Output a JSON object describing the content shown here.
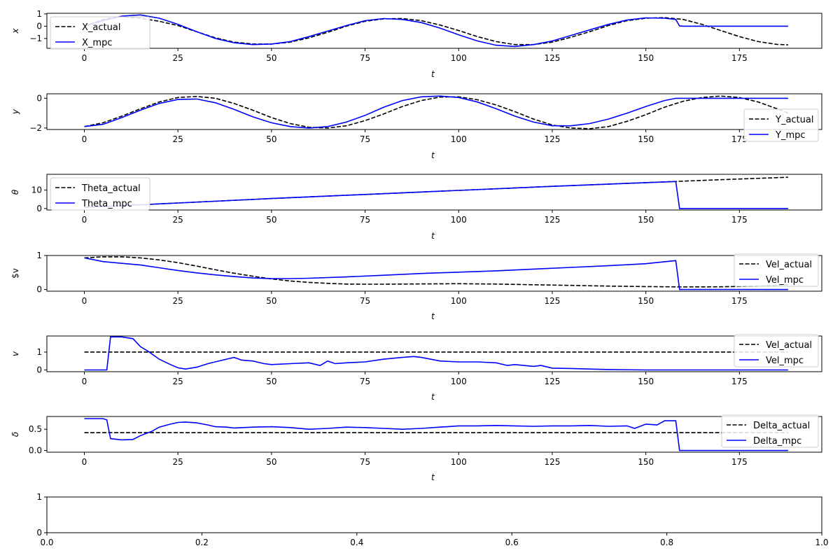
{
  "chart_data": [
    {
      "type": "line",
      "ylabel": "x",
      "xlabel": "t",
      "xlim": [
        -10,
        197
      ],
      "ylim": [
        -1.8,
        1.05
      ],
      "xticks": [
        0,
        25,
        50,
        75,
        100,
        125,
        150,
        175
      ],
      "yticks": [
        -1,
        0,
        1
      ],
      "ytick_labels": [
        "−1",
        "0",
        "1"
      ],
      "legend": "top-left",
      "series": [
        {
          "name": "X_actual",
          "style": "dashed",
          "color": "#000000",
          "x": [
            0,
            5,
            10,
            15,
            20,
            25,
            30,
            35,
            40,
            45,
            50,
            55,
            60,
            65,
            70,
            75,
            80,
            85,
            90,
            95,
            100,
            105,
            110,
            115,
            120,
            125,
            130,
            135,
            140,
            145,
            150,
            155,
            160,
            165,
            170,
            175,
            180,
            185,
            188
          ],
          "y": [
            0.0,
            0.55,
            0.78,
            0.65,
            0.4,
            0.05,
            -0.45,
            -0.95,
            -1.3,
            -1.45,
            -1.45,
            -1.3,
            -0.95,
            -0.5,
            0.0,
            0.4,
            0.6,
            0.62,
            0.45,
            0.1,
            -0.35,
            -0.85,
            -1.25,
            -1.5,
            -1.5,
            -1.3,
            -0.9,
            -0.45,
            0.05,
            0.45,
            0.65,
            0.7,
            0.55,
            0.15,
            -0.35,
            -0.85,
            -1.25,
            -1.48,
            -1.52
          ]
        },
        {
          "name": "X_mpc",
          "style": "solid",
          "color": "#0000ff",
          "x": [
            0,
            5,
            10,
            15,
            20,
            25,
            30,
            35,
            40,
            45,
            50,
            55,
            60,
            65,
            70,
            75,
            80,
            85,
            90,
            95,
            100,
            105,
            110,
            115,
            120,
            125,
            130,
            135,
            140,
            145,
            150,
            155,
            158,
            159,
            160,
            170,
            180,
            188
          ],
          "y": [
            0.0,
            0.45,
            0.82,
            0.92,
            0.65,
            0.15,
            -0.45,
            -1.0,
            -1.35,
            -1.5,
            -1.45,
            -1.25,
            -0.85,
            -0.4,
            0.05,
            0.45,
            0.62,
            0.55,
            0.3,
            -0.15,
            -0.7,
            -1.2,
            -1.55,
            -1.65,
            -1.5,
            -1.2,
            -0.75,
            -0.3,
            0.15,
            0.5,
            0.68,
            0.65,
            0.55,
            0.02,
            0.0,
            0.0,
            0.0,
            0.0
          ]
        }
      ]
    },
    {
      "type": "line",
      "ylabel": "y",
      "xlabel": "t",
      "xlim": [
        -10,
        197
      ],
      "ylim": [
        -2.1,
        0.3
      ],
      "xticks": [
        0,
        25,
        50,
        75,
        100,
        125,
        150,
        175
      ],
      "yticks": [
        -2,
        0
      ],
      "ytick_labels": [
        "−2",
        "0"
      ],
      "legend": "bottom-right",
      "series": [
        {
          "name": "Y_actual",
          "style": "dashed",
          "color": "#000000",
          "x": [
            0,
            5,
            10,
            15,
            20,
            25,
            30,
            35,
            40,
            45,
            50,
            55,
            60,
            65,
            70,
            75,
            80,
            85,
            90,
            95,
            100,
            105,
            110,
            115,
            120,
            125,
            130,
            135,
            140,
            145,
            150,
            155,
            160,
            165,
            170,
            175,
            180,
            185,
            188
          ],
          "y": [
            -1.9,
            -1.65,
            -1.2,
            -0.7,
            -0.25,
            0.05,
            0.12,
            0.0,
            -0.35,
            -0.8,
            -1.3,
            -1.7,
            -1.95,
            -2.0,
            -1.85,
            -1.5,
            -1.05,
            -0.55,
            -0.15,
            0.08,
            0.1,
            -0.1,
            -0.45,
            -0.9,
            -1.4,
            -1.8,
            -2.0,
            -2.05,
            -1.9,
            -1.55,
            -1.1,
            -0.6,
            -0.2,
            0.05,
            0.15,
            0.05,
            -0.25,
            -0.7,
            -1.0
          ]
        },
        {
          "name": "Y_mpc",
          "style": "solid",
          "color": "#0000ff",
          "x": [
            0,
            5,
            10,
            15,
            20,
            25,
            30,
            35,
            40,
            45,
            50,
            55,
            60,
            65,
            70,
            75,
            80,
            85,
            90,
            95,
            100,
            105,
            110,
            115,
            120,
            125,
            130,
            135,
            140,
            145,
            150,
            155,
            158,
            159,
            160,
            170,
            180,
            188
          ],
          "y": [
            -1.9,
            -1.75,
            -1.3,
            -0.8,
            -0.35,
            -0.08,
            -0.05,
            -0.3,
            -0.75,
            -1.25,
            -1.65,
            -1.9,
            -2.0,
            -1.9,
            -1.6,
            -1.15,
            -0.6,
            -0.15,
            0.1,
            0.15,
            0.05,
            -0.25,
            -0.7,
            -1.2,
            -1.6,
            -1.85,
            -1.85,
            -1.7,
            -1.4,
            -1.0,
            -0.55,
            -0.15,
            0.0,
            0.0,
            0.0,
            0.0,
            0.0,
            0.0
          ]
        }
      ]
    },
    {
      "type": "line",
      "ylabel": "θ",
      "xlabel": "t",
      "xlim": [
        -10,
        197
      ],
      "ylim": [
        -0.8,
        18.5
      ],
      "xticks": [
        0,
        25,
        50,
        75,
        100,
        125,
        150,
        175
      ],
      "yticks": [
        0,
        10
      ],
      "ytick_labels": [
        "0",
        "10"
      ],
      "legend": "top-left",
      "series": [
        {
          "name": "Theta_actual",
          "style": "dashed",
          "color": "#000000",
          "x": [
            0,
            25,
            50,
            75,
            100,
            125,
            150,
            159,
            170,
            188
          ],
          "y": [
            0.6,
            3.0,
            5.4,
            7.6,
            9.8,
            12.0,
            14.0,
            14.7,
            15.6,
            16.9
          ]
        },
        {
          "name": "Theta_mpc",
          "style": "solid",
          "color": "#0000ff",
          "x": [
            0,
            25,
            50,
            75,
            100,
            125,
            150,
            158,
            159,
            170,
            188
          ],
          "y": [
            0.6,
            3.0,
            5.4,
            7.6,
            9.8,
            12.0,
            14.0,
            14.6,
            0.0,
            0.0,
            0.0
          ]
        }
      ]
    },
    {
      "type": "line",
      "ylabel": "$v",
      "xlabel": "t",
      "xlim": [
        -10,
        197
      ],
      "ylim": [
        -0.05,
        1.0
      ],
      "xticks": [
        0,
        25,
        50,
        75,
        100,
        125,
        150,
        175
      ],
      "yticks": [
        0,
        1
      ],
      "ytick_labels": [
        "0",
        "1"
      ],
      "legend": "top-right",
      "series": [
        {
          "name": "Vel_actual",
          "style": "dashed",
          "color": "#000000",
          "x": [
            0,
            5,
            10,
            15,
            20,
            25,
            30,
            35,
            40,
            45,
            50,
            55,
            60,
            65,
            70,
            75,
            80,
            90,
            100,
            110,
            120,
            130,
            140,
            150,
            160,
            170,
            180,
            188
          ],
          "y": [
            0.93,
            0.96,
            0.96,
            0.93,
            0.87,
            0.79,
            0.69,
            0.58,
            0.48,
            0.39,
            0.31,
            0.25,
            0.21,
            0.18,
            0.16,
            0.155,
            0.155,
            0.165,
            0.17,
            0.16,
            0.14,
            0.12,
            0.1,
            0.085,
            0.075,
            0.08,
            0.1,
            0.14
          ]
        },
        {
          "name": "Vel_mpc",
          "style": "solid",
          "color": "#0000ff",
          "x": [
            0,
            5,
            10,
            15,
            20,
            25,
            30,
            35,
            40,
            45,
            50,
            55,
            60,
            70,
            80,
            90,
            100,
            110,
            120,
            130,
            140,
            150,
            158,
            159,
            170,
            188
          ],
          "y": [
            0.93,
            0.82,
            0.77,
            0.72,
            0.64,
            0.56,
            0.49,
            0.43,
            0.38,
            0.34,
            0.32,
            0.32,
            0.33,
            0.37,
            0.42,
            0.47,
            0.51,
            0.55,
            0.6,
            0.65,
            0.7,
            0.76,
            0.85,
            0.0,
            0.0,
            0.0
          ]
        }
      ]
    },
    {
      "type": "line",
      "ylabel": "v",
      "xlabel": "t",
      "xlim": [
        -10,
        197
      ],
      "ylim": [
        -0.1,
        1.9
      ],
      "xticks": [
        0,
        25,
        50,
        75,
        100,
        125,
        150,
        175
      ],
      "yticks": [
        0,
        1
      ],
      "ytick_labels": [
        "0",
        "1"
      ],
      "legend": "top-right",
      "series": [
        {
          "name": "Vel_actual",
          "style": "dashed",
          "color": "#000000",
          "x": [
            0,
            188
          ],
          "y": [
            1.0,
            1.0
          ]
        },
        {
          "name": "Vel_mpc",
          "style": "solid",
          "color": "#0000ff",
          "x": [
            0,
            6,
            7,
            10,
            13,
            15,
            17,
            20,
            23,
            25,
            27,
            30,
            33,
            37,
            40,
            42,
            45,
            48,
            50,
            55,
            60,
            63,
            65,
            67,
            70,
            75,
            80,
            85,
            88,
            90,
            95,
            100,
            105,
            110,
            113,
            115,
            120,
            122,
            125,
            130,
            135,
            140,
            150,
            160,
            170,
            188
          ],
          "y": [
            0.0,
            0.0,
            1.85,
            1.85,
            1.75,
            1.3,
            1.05,
            0.6,
            0.3,
            0.12,
            0.05,
            0.15,
            0.35,
            0.55,
            0.7,
            0.55,
            0.5,
            0.35,
            0.3,
            0.35,
            0.4,
            0.25,
            0.5,
            0.35,
            0.4,
            0.45,
            0.6,
            0.7,
            0.75,
            0.7,
            0.5,
            0.45,
            0.45,
            0.4,
            0.25,
            0.3,
            0.2,
            0.25,
            0.1,
            0.08,
            0.05,
            0.02,
            0.0,
            0.0,
            0.0,
            0.0
          ]
        }
      ]
    },
    {
      "type": "line",
      "ylabel": "δ",
      "xlabel": "t",
      "xlim": [
        -10,
        197
      ],
      "ylim": [
        -0.04,
        0.8
      ],
      "xticks": [
        0,
        25,
        50,
        75,
        100,
        125,
        150,
        175
      ],
      "yticks": [
        0,
        0.5
      ],
      "ytick_labels": [
        "0.0",
        "0.5"
      ],
      "legend": "top-right",
      "series": [
        {
          "name": "Delta_actual",
          "style": "dashed",
          "color": "#000000",
          "x": [
            0,
            188
          ],
          "y": [
            0.42,
            0.42
          ]
        },
        {
          "name": "Delta_mpc",
          "style": "solid",
          "color": "#0000ff",
          "x": [
            0,
            5,
            6,
            7,
            10,
            13,
            15,
            18,
            20,
            23,
            25,
            27,
            30,
            33,
            35,
            38,
            40,
            45,
            50,
            55,
            60,
            65,
            70,
            75,
            80,
            85,
            90,
            95,
            100,
            105,
            110,
            115,
            120,
            125,
            130,
            135,
            140,
            145,
            147,
            150,
            153,
            155,
            158,
            159,
            170,
            188
          ],
          "y": [
            0.75,
            0.75,
            0.72,
            0.28,
            0.25,
            0.26,
            0.35,
            0.45,
            0.55,
            0.62,
            0.66,
            0.67,
            0.65,
            0.6,
            0.56,
            0.55,
            0.53,
            0.55,
            0.56,
            0.54,
            0.5,
            0.52,
            0.55,
            0.54,
            0.52,
            0.5,
            0.52,
            0.55,
            0.58,
            0.58,
            0.59,
            0.58,
            0.57,
            0.58,
            0.58,
            0.59,
            0.57,
            0.58,
            0.52,
            0.62,
            0.6,
            0.7,
            0.7,
            0.0,
            0.0,
            0.0
          ]
        }
      ]
    },
    {
      "type": "line",
      "ylabel": "",
      "xlabel": "",
      "xlim": [
        0,
        1
      ],
      "ylim": [
        0,
        1
      ],
      "xticks": [
        0,
        0.2,
        0.4,
        0.6,
        0.8,
        1.0
      ],
      "yticks": [
        0,
        1
      ],
      "xtick_labels": [
        "0.0",
        "0.2",
        "0.4",
        "0.6",
        "0.8",
        "1.0"
      ],
      "ytick_labels": [
        "0",
        "1"
      ],
      "legend": "",
      "series": []
    }
  ]
}
